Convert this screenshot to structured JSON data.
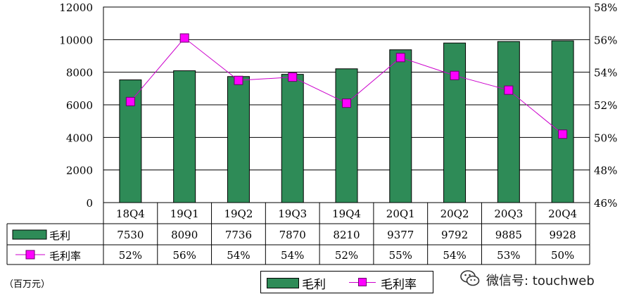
{
  "chart_data": {
    "type": "bar+line",
    "categories": [
      "18Q4",
      "19Q1",
      "19Q2",
      "19Q3",
      "19Q4",
      "20Q1",
      "20Q2",
      "20Q3",
      "20Q4"
    ],
    "series": [
      {
        "name": "毛利",
        "type": "bar",
        "axis": "left",
        "color": "#2e8b57",
        "values": [
          7530,
          8090,
          7736,
          7870,
          8210,
          9377,
          9792,
          9885,
          9928
        ]
      },
      {
        "name": "毛利率",
        "type": "line",
        "axis": "right",
        "color": "#ff00ff",
        "values": [
          52.2,
          56.1,
          53.5,
          53.7,
          52.1,
          54.9,
          53.8,
          52.9,
          50.2
        ]
      }
    ],
    "table_rows": {
      "gross_profit": [
        "7530",
        "8090",
        "7736",
        "7870",
        "8210",
        "9377",
        "9792",
        "9885",
        "9928"
      ],
      "gross_margin": [
        "52%",
        "56%",
        "54%",
        "54%",
        "52%",
        "55%",
        "54%",
        "53%",
        "50%"
      ]
    },
    "y_left": {
      "min": 0,
      "max": 12000,
      "ticks": [
        "12000",
        "10000",
        "8000",
        "6000",
        "4000",
        "2000",
        "0"
      ]
    },
    "y_right": {
      "min": 46,
      "max": 58,
      "ticks": [
        "58%",
        "56%",
        "54%",
        "52%",
        "50%",
        "48%",
        "46%"
      ]
    },
    "grid": true,
    "legend_position": "bottom"
  },
  "unit_label": "（百万元）",
  "legend": {
    "bar_label": "毛利",
    "line_label": "毛利率"
  },
  "watermark": {
    "text": "微信号: touchweb"
  }
}
